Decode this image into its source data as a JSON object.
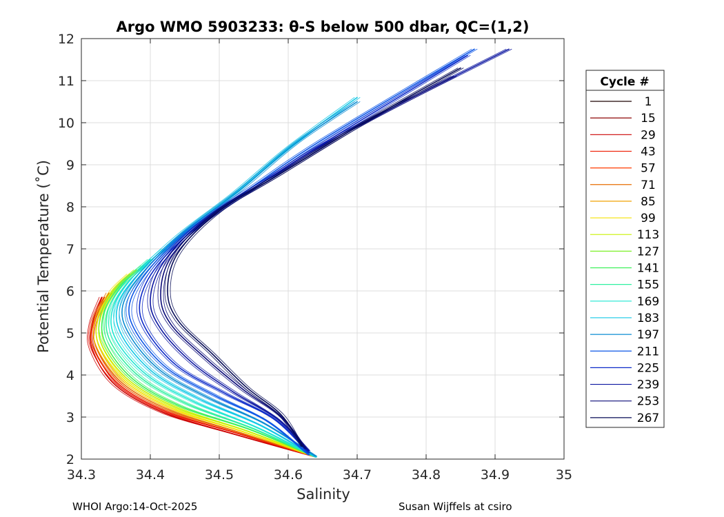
{
  "chart_data": {
    "type": "line",
    "title": "Argo WMO 5903233: θ-S below 500 dbar,  QC=(1,2)",
    "xlabel": "Salinity",
    "ylabel": "Potential Temperature (˚C)",
    "xlim": [
      34.3,
      35
    ],
    "ylim": [
      2,
      12
    ],
    "xticks": [
      "34.3",
      "34.4",
      "34.5",
      "34.6",
      "34.7",
      "34.8",
      "34.9",
      "35"
    ],
    "yticks": [
      "2",
      "3",
      "4",
      "5",
      "6",
      "7",
      "8",
      "9",
      "10",
      "11",
      "12"
    ],
    "grid": true,
    "legend": {
      "title": "Cycle #",
      "placement": "right-outside",
      "entries": [
        {
          "label": "1",
          "color": "#1a0000"
        },
        {
          "label": "15",
          "color": "#8c0000"
        },
        {
          "label": "29",
          "color": "#cc0000"
        },
        {
          "label": "43",
          "color": "#ee1a00"
        },
        {
          "label": "57",
          "color": "#ff3b00"
        },
        {
          "label": "71",
          "color": "#e66b00"
        },
        {
          "label": "85",
          "color": "#f0a000"
        },
        {
          "label": "99",
          "color": "#f5e100"
        },
        {
          "label": "113",
          "color": "#c8f000"
        },
        {
          "label": "127",
          "color": "#7cf028"
        },
        {
          "label": "141",
          "color": "#3ef05a"
        },
        {
          "label": "155",
          "color": "#2ef0a0"
        },
        {
          "label": "169",
          "color": "#1ee6d2"
        },
        {
          "label": "183",
          "color": "#10c8e6"
        },
        {
          "label": "197",
          "color": "#0a8cd2"
        },
        {
          "label": "211",
          "color": "#0a55e6"
        },
        {
          "label": "225",
          "color": "#0a28c8"
        },
        {
          "label": "239",
          "color": "#0a14a0"
        },
        {
          "label": "253",
          "color": "#0a0a78"
        },
        {
          "label": "267",
          "color": "#050a55"
        }
      ]
    },
    "series": [
      {
        "color": "#cc0000",
        "points": [
          [
            34.64,
            2.05
          ],
          [
            34.52,
            2.6
          ],
          [
            34.42,
            3.1
          ],
          [
            34.35,
            3.75
          ],
          [
            34.316,
            4.6
          ],
          [
            34.315,
            5.2
          ],
          [
            34.33,
            5.85
          ]
        ]
      },
      {
        "color": "#ee1a00",
        "points": [
          [
            34.64,
            2.05
          ],
          [
            34.525,
            2.62
          ],
          [
            34.425,
            3.12
          ],
          [
            34.355,
            3.77
          ],
          [
            34.318,
            4.62
          ],
          [
            34.317,
            5.22
          ],
          [
            34.333,
            5.85
          ]
        ]
      },
      {
        "color": "#e66b00",
        "points": [
          [
            34.64,
            2.05
          ],
          [
            34.53,
            2.63
          ],
          [
            34.43,
            3.15
          ],
          [
            34.36,
            3.8
          ],
          [
            34.322,
            4.65
          ],
          [
            34.32,
            5.3
          ],
          [
            34.34,
            5.95
          ]
        ]
      },
      {
        "color": "#f5e100",
        "points": [
          [
            34.64,
            2.05
          ],
          [
            34.535,
            2.65
          ],
          [
            34.435,
            3.18
          ],
          [
            34.365,
            3.83
          ],
          [
            34.326,
            4.68
          ],
          [
            34.324,
            5.35
          ],
          [
            34.345,
            6.0
          ],
          [
            34.37,
            6.4
          ]
        ]
      },
      {
        "color": "#c8f000",
        "points": [
          [
            34.64,
            2.05
          ],
          [
            34.54,
            2.67
          ],
          [
            34.44,
            3.21
          ],
          [
            34.37,
            3.86
          ],
          [
            34.33,
            4.7
          ],
          [
            34.328,
            5.4
          ],
          [
            34.35,
            6.05
          ],
          [
            34.38,
            6.5
          ]
        ]
      },
      {
        "color": "#3ef05a",
        "points": [
          [
            34.64,
            2.05
          ],
          [
            34.545,
            2.7
          ],
          [
            34.445,
            3.25
          ],
          [
            34.375,
            3.9
          ],
          [
            34.335,
            4.75
          ],
          [
            34.332,
            5.45
          ],
          [
            34.355,
            6.1
          ],
          [
            34.39,
            6.6
          ]
        ]
      },
      {
        "color": "#2ef0a0",
        "points": [
          [
            34.64,
            2.05
          ],
          [
            34.55,
            2.72
          ],
          [
            34.455,
            3.3
          ],
          [
            34.385,
            3.95
          ],
          [
            34.342,
            4.8
          ],
          [
            34.338,
            5.5
          ],
          [
            34.36,
            6.15
          ],
          [
            34.4,
            6.75
          ]
        ]
      },
      {
        "color": "#1ee6d2",
        "points": [
          [
            34.64,
            2.05
          ],
          [
            34.555,
            2.75
          ],
          [
            34.465,
            3.35
          ],
          [
            34.395,
            4.0
          ],
          [
            34.35,
            4.85
          ],
          [
            34.345,
            5.55
          ],
          [
            34.37,
            6.25
          ],
          [
            34.42,
            7.0
          ]
        ]
      },
      {
        "color": "#10c8e6",
        "points": [
          [
            34.64,
            2.05
          ],
          [
            34.56,
            2.8
          ],
          [
            34.475,
            3.4
          ],
          [
            34.405,
            4.05
          ],
          [
            34.36,
            4.9
          ],
          [
            34.352,
            5.6
          ],
          [
            34.38,
            6.35
          ],
          [
            34.44,
            7.3
          ],
          [
            34.52,
            8.3
          ],
          [
            34.6,
            9.4
          ],
          [
            34.7,
            10.6
          ]
        ]
      },
      {
        "color": "#0a8cd2",
        "points": [
          [
            34.64,
            2.07
          ],
          [
            34.565,
            2.85
          ],
          [
            34.485,
            3.45
          ],
          [
            34.415,
            4.1
          ],
          [
            34.37,
            4.95
          ],
          [
            34.36,
            5.65
          ],
          [
            34.39,
            6.45
          ],
          [
            34.45,
            7.4
          ],
          [
            34.53,
            8.4
          ],
          [
            34.61,
            9.5
          ],
          [
            34.7,
            10.5
          ]
        ]
      },
      {
        "color": "#0a55e6",
        "points": [
          [
            34.63,
            2.1
          ],
          [
            34.57,
            2.9
          ],
          [
            34.495,
            3.5
          ],
          [
            34.425,
            4.15
          ],
          [
            34.38,
            5.0
          ],
          [
            34.37,
            5.7
          ],
          [
            34.4,
            6.55
          ],
          [
            34.46,
            7.5
          ],
          [
            34.55,
            8.5
          ],
          [
            34.65,
            9.6
          ],
          [
            34.87,
            11.75
          ]
        ]
      },
      {
        "color": "#0a28c8",
        "points": [
          [
            34.63,
            2.15
          ],
          [
            34.58,
            2.95
          ],
          [
            34.51,
            3.55
          ],
          [
            34.44,
            4.2
          ],
          [
            34.395,
            5.05
          ],
          [
            34.385,
            5.75
          ],
          [
            34.41,
            6.6
          ],
          [
            34.47,
            7.55
          ],
          [
            34.56,
            8.55
          ],
          [
            34.66,
            9.6
          ],
          [
            34.86,
            11.6
          ]
        ]
      },
      {
        "color": "#0a14a0",
        "points": [
          [
            34.63,
            2.2
          ],
          [
            34.585,
            2.95
          ],
          [
            34.52,
            3.6
          ],
          [
            34.46,
            4.3
          ],
          [
            34.415,
            5.1
          ],
          [
            34.4,
            5.8
          ],
          [
            34.42,
            6.7
          ],
          [
            34.48,
            7.7
          ],
          [
            34.57,
            8.65
          ],
          [
            34.68,
            9.75
          ],
          [
            34.92,
            11.75
          ]
        ]
      },
      {
        "color": "#0a0a78",
        "points": [
          [
            34.625,
            2.25
          ],
          [
            34.59,
            3.0
          ],
          [
            34.535,
            3.65
          ],
          [
            34.48,
            4.4
          ],
          [
            34.43,
            5.2
          ],
          [
            34.415,
            5.9
          ],
          [
            34.43,
            6.8
          ],
          [
            34.49,
            7.8
          ],
          [
            34.58,
            8.7
          ],
          [
            34.7,
            9.9
          ],
          [
            34.84,
            11.1
          ]
        ]
      },
      {
        "color": "#050a55",
        "points": [
          [
            34.62,
            2.3
          ],
          [
            34.59,
            3.05
          ],
          [
            34.54,
            3.7
          ],
          [
            34.49,
            4.5
          ],
          [
            34.44,
            5.3
          ],
          [
            34.425,
            6.0
          ],
          [
            34.44,
            6.9
          ],
          [
            34.5,
            7.9
          ],
          [
            34.59,
            8.8
          ],
          [
            34.72,
            10.1
          ],
          [
            34.85,
            11.3
          ]
        ]
      }
    ]
  },
  "footer": {
    "left": "WHOI Argo:14-Oct-2025",
    "right": "Susan Wijffels at csiro"
  }
}
